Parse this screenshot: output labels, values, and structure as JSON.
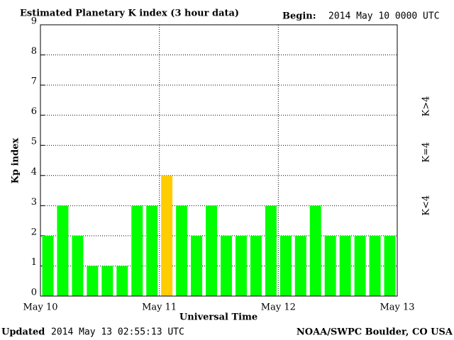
{
  "chart_data": {
    "type": "bar",
    "title": "Estimated Planetary K index (3 hour data)",
    "begin_label": "Begin:",
    "begin": "2014 May 10 0000 UTC",
    "y_label": "Kp index",
    "x_label": "Universal Time",
    "updated_label": "Updated",
    "updated": "2014 May 13 02:55:13 UTC",
    "credit": "NOAA/SWPC Boulder, CO USA",
    "values": [
      2,
      3,
      2,
      1,
      1,
      1,
      3,
      3,
      4,
      3,
      2,
      3,
      2,
      2,
      2,
      3,
      2,
      2,
      3,
      2,
      2,
      2,
      2,
      2
    ],
    "colors": [
      "#00ff00",
      "#00ff00",
      "#00ff00",
      "#00ff00",
      "#00ff00",
      "#00ff00",
      "#00ff00",
      "#00ff00",
      "#ffcc00",
      "#00ff00",
      "#00ff00",
      "#00ff00",
      "#00ff00",
      "#00ff00",
      "#00ff00",
      "#00ff00",
      "#00ff00",
      "#00ff00",
      "#00ff00",
      "#00ff00",
      "#00ff00",
      "#00ff00",
      "#00ff00",
      "#00ff00"
    ],
    "xlim": [
      0,
      24
    ],
    "xticks": [
      {
        "value": 0,
        "label": "May 10"
      },
      {
        "value": 8,
        "label": "May 11"
      },
      {
        "value": 16,
        "label": "May 12"
      },
      {
        "value": 24,
        "label": "May 13"
      }
    ],
    "ylim": [
      0,
      9
    ],
    "yticks": [
      0,
      1,
      2,
      3,
      4,
      5,
      6,
      7,
      8,
      9
    ],
    "grid": true,
    "legend": [
      {
        "label": "K<4",
        "color": "#00ff00"
      },
      {
        "label": "K=4",
        "color": "#ffcc00"
      },
      {
        "label": "K>4",
        "color": "#ff2000"
      }
    ]
  }
}
